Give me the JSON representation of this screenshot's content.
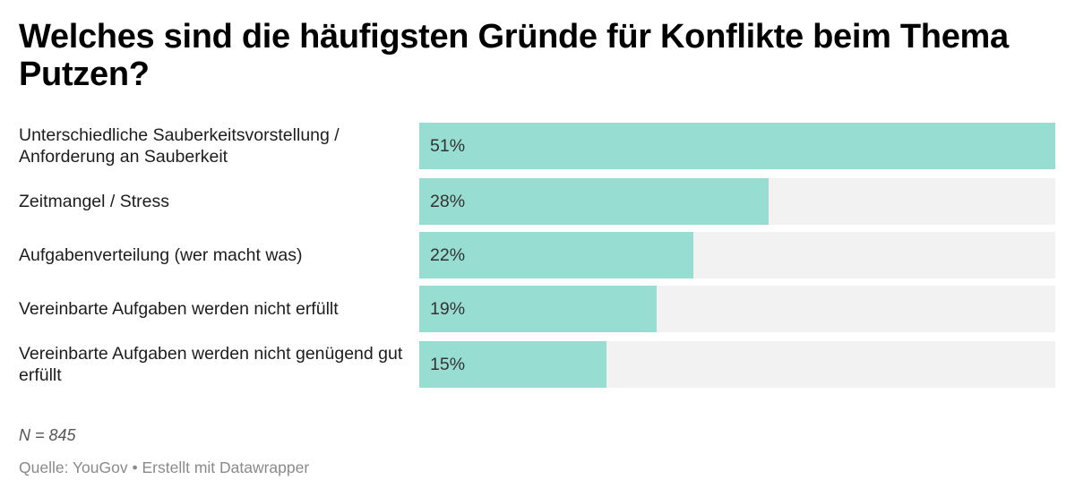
{
  "chart_data": {
    "type": "bar",
    "orientation": "horizontal",
    "title": "Welches sind die häufigsten Gründe für Konflikte beim Thema Putzen?",
    "categories": [
      "Unterschiedliche Sauberkeitsvorstellung / Anforderung an Sauberkeit",
      "Zeitmangel / Stress",
      "Aufgabenverteilung (wer macht was)",
      "Vereinbarte Aufgaben werden nicht erfüllt",
      "Vereinbarte Aufgaben werden nicht genügend gut erfüllt"
    ],
    "values": [
      51,
      28,
      22,
      19,
      15
    ],
    "value_labels": [
      "51%",
      "28%",
      "22%",
      "19%",
      "15%"
    ],
    "unit": "%",
    "xlim": [
      0,
      51
    ],
    "xlabel": "",
    "ylabel": "",
    "grid": false,
    "legend": "none",
    "colors": {
      "bar": "#98ddd1",
      "track": "#f2f2f2"
    }
  },
  "notes": "N = 845",
  "source": "Quelle: YouGov • Erstellt mit Datawrapper"
}
